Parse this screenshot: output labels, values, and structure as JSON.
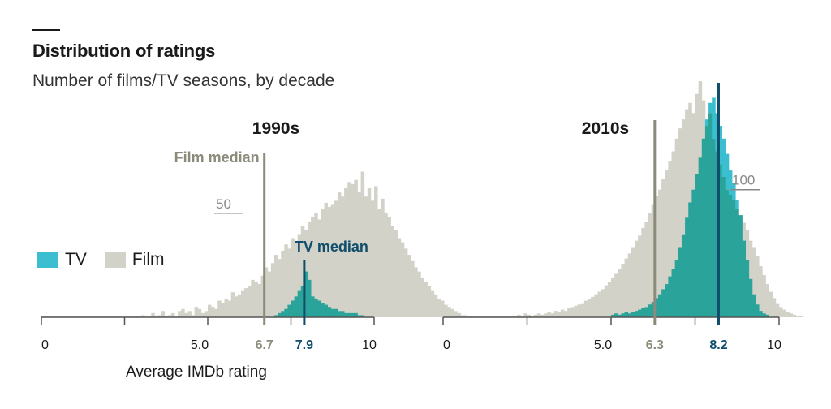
{
  "title": "Distribution of ratings",
  "subtitle": "Number of films/TV seasons, by decade",
  "legend": {
    "tv": "TV",
    "film": "Film"
  },
  "colors": {
    "tv": "#3bbfd0",
    "film": "#d2d2c9",
    "overlap": "#2aa39a",
    "film_median": "#8c8a7a",
    "tv_median": "#0f4d6b",
    "axis": "#555555"
  },
  "chart_data": [
    {
      "type": "bar",
      "title": "1990s",
      "xlabel": "Average IMDb rating",
      "xlim": [
        0,
        10
      ],
      "x_ticks": [
        0,
        2.5,
        5,
        7.5,
        10
      ],
      "x_tick_labels": [
        "0",
        "",
        "5.0",
        "",
        "10"
      ],
      "bin_width": 0.1,
      "scale_marker": {
        "value": 50,
        "label": "50"
      },
      "film_median": {
        "value": 6.7,
        "label": "6.7",
        "annotation": "Film median"
      },
      "tv_median": {
        "value": 7.9,
        "label": "7.9",
        "annotation": "TV median"
      },
      "series": [
        {
          "name": "Film",
          "x_start": 3.0,
          "values": [
            1,
            0,
            0,
            2,
            0,
            1,
            3,
            0,
            1,
            2,
            0,
            3,
            4,
            2,
            3,
            1,
            5,
            4,
            2,
            3,
            6,
            5,
            4,
            8,
            7,
            9,
            8,
            12,
            10,
            11,
            13,
            14,
            15,
            18,
            17,
            16,
            20,
            24,
            22,
            26,
            30,
            28,
            32,
            35,
            33,
            38,
            36,
            40,
            44,
            42,
            46,
            48,
            50,
            47,
            52,
            55,
            53,
            54,
            56,
            60,
            58,
            62,
            65,
            64,
            66,
            60,
            70,
            58,
            62,
            56,
            63,
            52,
            57,
            50,
            48,
            44,
            42,
            38,
            36,
            33,
            30,
            27,
            24,
            22,
            19,
            17,
            15,
            13,
            11,
            9,
            8,
            6,
            5,
            4,
            3,
            2,
            1,
            1,
            0,
            0,
            0
          ]
        },
        {
          "name": "TV",
          "x_start": 7.0,
          "values": [
            1,
            2,
            3,
            4,
            6,
            8,
            10,
            13,
            15,
            22,
            18,
            10,
            9,
            8,
            7,
            6,
            5,
            4,
            4,
            3,
            3,
            2,
            2,
            2,
            2,
            1,
            1
          ]
        }
      ]
    },
    {
      "type": "bar",
      "title": "2010s",
      "xlabel": "",
      "xlim": [
        0,
        10
      ],
      "x_ticks": [
        0,
        2.5,
        5,
        7.5,
        10
      ],
      "x_tick_labels": [
        "0",
        "",
        "5.0",
        "",
        "10"
      ],
      "bin_width": 0.1,
      "scale_marker": {
        "value": 100,
        "label": "100"
      },
      "film_median": {
        "value": 6.3,
        "label": "6.3",
        "annotation": ""
      },
      "tv_median": {
        "value": 8.2,
        "label": "8.2",
        "annotation": ""
      },
      "series": [
        {
          "name": "Film",
          "x_start": 1.9,
          "values": [
            1,
            0,
            1,
            2,
            1,
            3,
            2,
            1,
            2,
            3,
            2,
            3,
            4,
            3,
            5,
            4,
            6,
            5,
            7,
            8,
            9,
            10,
            11,
            13,
            14,
            16,
            18,
            20,
            22,
            25,
            28,
            31,
            34,
            38,
            42,
            46,
            50,
            55,
            60,
            64,
            70,
            75,
            82,
            88,
            95,
            100,
            108,
            115,
            122,
            130,
            140,
            148,
            155,
            163,
            168,
            160,
            175,
            185,
            170,
            150,
            160,
            140,
            130,
            120,
            110,
            100,
            96,
            92,
            85,
            80,
            74,
            68,
            60,
            55,
            48,
            40,
            33,
            26,
            20,
            15,
            11,
            8,
            6,
            4,
            3,
            2,
            1,
            1,
            0,
            0,
            0
          ]
        },
        {
          "name": "TV",
          "x_start": 5.0,
          "values": [
            2,
            3,
            2,
            3,
            4,
            3,
            4,
            5,
            6,
            7,
            8,
            10,
            12,
            15,
            18,
            22,
            26,
            32,
            38,
            45,
            55,
            65,
            78,
            90,
            100,
            112,
            125,
            140,
            155,
            168,
            172,
            160,
            150,
            140,
            128,
            115,
            105,
            92,
            80,
            60,
            45,
            30,
            18,
            10,
            5,
            3,
            2
          ]
        }
      ]
    }
  ]
}
